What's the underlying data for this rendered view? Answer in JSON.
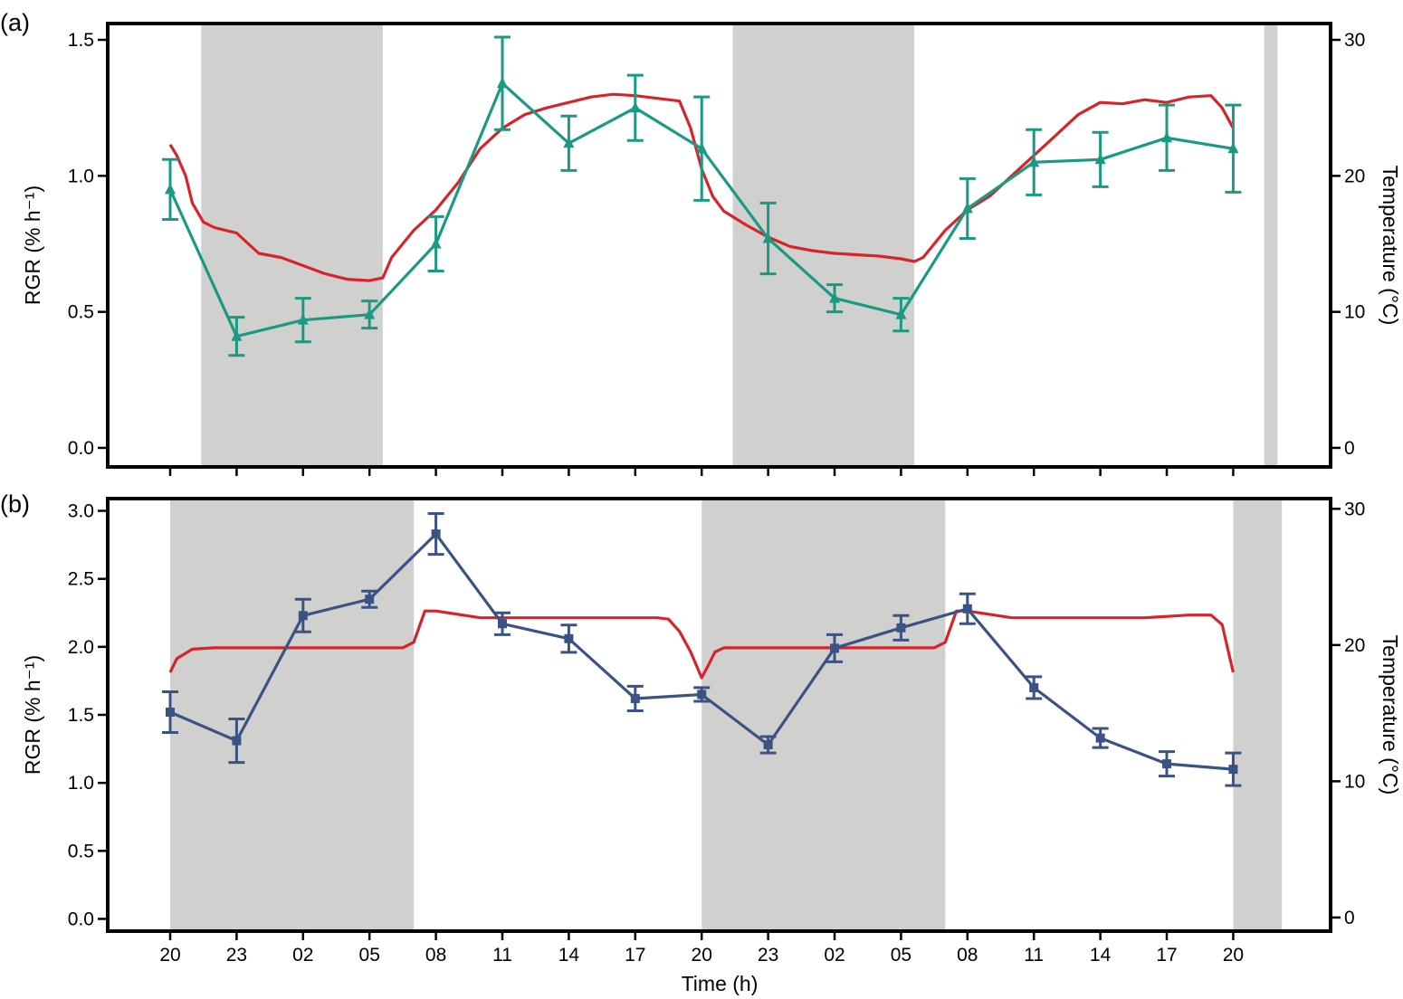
{
  "x_axis": {
    "title": "Time (h)",
    "tick_labels": [
      "20",
      "23",
      "02",
      "05",
      "08",
      "11",
      "14",
      "17",
      "20",
      "23",
      "02",
      "05",
      "08",
      "11",
      "14",
      "17",
      "20"
    ]
  },
  "colors": {
    "night_shading": "#d0d0cf",
    "temperature": "#d7242b",
    "rgr_a": "#1a9a82",
    "rgr_b": "#3b5285"
  },
  "chart_data": [
    {
      "panel_label": "(a)",
      "type": "line",
      "ylabel": "RGR (% h⁻¹)",
      "y2label": "Temperature (°C)",
      "ylim": [
        -0.07,
        1.56
      ],
      "y2lim": [
        -1.4,
        31.2
      ],
      "yticks": [
        0.0,
        0.5,
        1.0,
        1.5
      ],
      "ytick_labels": [
        "0.0",
        "0.5",
        "1.0",
        "1.5"
      ],
      "y2ticks": [
        0,
        10,
        20,
        30
      ],
      "y2tick_labels": [
        "0",
        "10",
        "20",
        "30"
      ],
      "marker": "triangle",
      "night_periods": [
        [
          21.4,
          29.6
        ],
        [
          45.4,
          53.6
        ],
        [
          69.4,
          70
        ]
      ],
      "series": [
        {
          "x": [
            20,
            23,
            26,
            29,
            32,
            35,
            38,
            41,
            44,
            47,
            50,
            53,
            56,
            59,
            62,
            65,
            68
          ],
          "y": [
            0.95,
            0.41,
            0.47,
            0.49,
            0.75,
            1.34,
            1.12,
            1.25,
            1.1,
            0.77,
            0.55,
            0.49,
            0.88,
            1.05,
            1.06,
            1.14,
            1.1
          ],
          "err": [
            0.11,
            0.07,
            0.08,
            0.05,
            0.1,
            0.17,
            0.1,
            0.12,
            0.19,
            0.13,
            0.05,
            0.06,
            0.11,
            0.12,
            0.1,
            0.12,
            0.16
          ]
        }
      ],
      "temperature": {
        "x": [
          20,
          20.3,
          20.7,
          21,
          21.5,
          22,
          23,
          24,
          25,
          26,
          27,
          28,
          29,
          29.6,
          30,
          31,
          32,
          33,
          34,
          35,
          36,
          37,
          38,
          39,
          40,
          41,
          42,
          43,
          43.5,
          44,
          44.5,
          45,
          46,
          47,
          48,
          49,
          50,
          51,
          52,
          53,
          53.6,
          54,
          55,
          56,
          57,
          58,
          59,
          60,
          61,
          62,
          63,
          64,
          65,
          66,
          67,
          67.5,
          68
        ],
        "y": [
          22.3,
          21.5,
          20.0,
          18.0,
          16.6,
          16.2,
          15.8,
          14.3,
          14.0,
          13.4,
          12.8,
          12.4,
          12.3,
          12.5,
          14.0,
          16.0,
          17.5,
          19.5,
          22.0,
          23.5,
          24.5,
          25.0,
          25.4,
          25.8,
          26.0,
          25.9,
          25.7,
          25.5,
          23.5,
          20.5,
          18.5,
          17.4,
          16.4,
          15.5,
          14.8,
          14.5,
          14.3,
          14.2,
          14.1,
          13.9,
          13.7,
          14.0,
          16.0,
          17.5,
          18.5,
          20.0,
          21.5,
          23.0,
          24.5,
          25.4,
          25.3,
          25.6,
          25.4,
          25.8,
          25.9,
          25.0,
          23.5
        ]
      }
    },
    {
      "panel_label": "(b)",
      "type": "line",
      "ylabel": "RGR (% h⁻¹)",
      "y2label": "Temperature (°C)",
      "ylim": [
        -0.09,
        3.09
      ],
      "y2lim": [
        -1.0,
        30.75
      ],
      "yticks": [
        0.0,
        0.5,
        1.0,
        1.5,
        2.0,
        2.5,
        3.0
      ],
      "ytick_labels": [
        "0.0",
        "0.5",
        "1.0",
        "1.5",
        "2.0",
        "2.5",
        "3.0"
      ],
      "y2ticks": [
        0,
        10,
        20,
        30
      ],
      "y2tick_labels": [
        "0",
        "10",
        "20",
        "30"
      ],
      "marker": "square",
      "night_periods": [
        [
          20,
          31
        ],
        [
          44,
          55
        ],
        [
          68,
          70.2
        ]
      ],
      "series": [
        {
          "x": [
            20,
            23,
            26,
            29,
            32,
            35,
            38,
            41,
            44,
            47,
            50,
            53,
            56,
            59,
            62,
            65,
            68
          ],
          "y": [
            1.52,
            1.31,
            2.23,
            2.35,
            2.83,
            2.17,
            2.06,
            1.62,
            1.65,
            1.28,
            1.99,
            2.14,
            2.28,
            1.7,
            1.33,
            1.14,
            1.1
          ],
          "err": [
            0.15,
            0.16,
            0.12,
            0.06,
            0.15,
            0.08,
            0.1,
            0.09,
            0.05,
            0.06,
            0.1,
            0.09,
            0.11,
            0.08,
            0.07,
            0.09,
            0.12
          ]
        }
      ],
      "temperature": {
        "x": [
          20,
          20.3,
          21,
          22,
          23,
          26,
          29,
          30.5,
          31,
          31.5,
          32,
          34,
          37,
          40,
          42,
          42.5,
          43,
          43.5,
          44,
          44.3,
          44.6,
          45,
          46,
          47,
          50,
          53,
          54.5,
          55,
          55.5,
          56,
          58,
          61,
          64,
          66,
          67,
          67.5,
          68
        ],
        "y": [
          18.0,
          19.0,
          19.7,
          19.8,
          19.8,
          19.8,
          19.8,
          19.8,
          20.2,
          22.5,
          22.5,
          22.0,
          22.0,
          22.0,
          22.0,
          21.9,
          21.0,
          19.5,
          17.6,
          18.5,
          19.5,
          19.8,
          19.8,
          19.8,
          19.8,
          19.8,
          19.8,
          20.2,
          22.5,
          22.5,
          22.0,
          22.0,
          22.0,
          22.2,
          22.2,
          21.5,
          18.0
        ]
      }
    }
  ]
}
